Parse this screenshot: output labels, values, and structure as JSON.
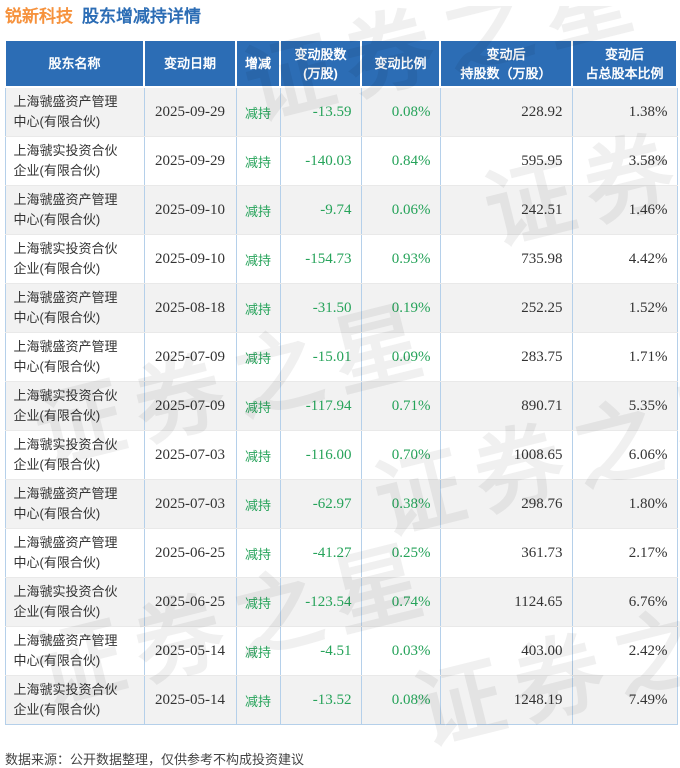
{
  "page_title": {
    "stock_name": "锐新科技",
    "report_title": "股东增减持详情"
  },
  "chart_data": {
    "type": "table",
    "title": "锐新科技 股东增减持详情",
    "columns": [
      {
        "key": "name",
        "label": "股东名称"
      },
      {
        "key": "date",
        "label": "变动日期"
      },
      {
        "key": "action",
        "label": "增减"
      },
      {
        "key": "change_shares",
        "label": "变动股数\n(万股)"
      },
      {
        "key": "change_ratio",
        "label": "变动比例"
      },
      {
        "key": "shares_after",
        "label": "变动后\n持股数（万股）"
      },
      {
        "key": "ratio_after",
        "label": "变动后\n占总股本比例"
      }
    ],
    "rows": [
      {
        "name": "上海虢盛资产管理中心(有限合伙)",
        "date": "2025-09-29",
        "action": "减持",
        "change_shares": "-13.59",
        "change_ratio": "0.08%",
        "shares_after": "228.92",
        "ratio_after": "1.38%"
      },
      {
        "name": "上海虢实投资合伙企业(有限合伙)",
        "date": "2025-09-29",
        "action": "减持",
        "change_shares": "-140.03",
        "change_ratio": "0.84%",
        "shares_after": "595.95",
        "ratio_after": "3.58%"
      },
      {
        "name": "上海虢盛资产管理中心(有限合伙)",
        "date": "2025-09-10",
        "action": "减持",
        "change_shares": "-9.74",
        "change_ratio": "0.06%",
        "shares_after": "242.51",
        "ratio_after": "1.46%"
      },
      {
        "name": "上海虢实投资合伙企业(有限合伙)",
        "date": "2025-09-10",
        "action": "减持",
        "change_shares": "-154.73",
        "change_ratio": "0.93%",
        "shares_after": "735.98",
        "ratio_after": "4.42%"
      },
      {
        "name": "上海虢盛资产管理中心(有限合伙)",
        "date": "2025-08-18",
        "action": "减持",
        "change_shares": "-31.50",
        "change_ratio": "0.19%",
        "shares_after": "252.25",
        "ratio_after": "1.52%"
      },
      {
        "name": "上海虢盛资产管理中心(有限合伙)",
        "date": "2025-07-09",
        "action": "减持",
        "change_shares": "-15.01",
        "change_ratio": "0.09%",
        "shares_after": "283.75",
        "ratio_after": "1.71%"
      },
      {
        "name": "上海虢实投资合伙企业(有限合伙)",
        "date": "2025-07-09",
        "action": "减持",
        "change_shares": "-117.94",
        "change_ratio": "0.71%",
        "shares_after": "890.71",
        "ratio_after": "5.35%"
      },
      {
        "name": "上海虢实投资合伙企业(有限合伙)",
        "date": "2025-07-03",
        "action": "减持",
        "change_shares": "-116.00",
        "change_ratio": "0.70%",
        "shares_after": "1008.65",
        "ratio_after": "6.06%"
      },
      {
        "name": "上海虢盛资产管理中心(有限合伙)",
        "date": "2025-07-03",
        "action": "减持",
        "change_shares": "-62.97",
        "change_ratio": "0.38%",
        "shares_after": "298.76",
        "ratio_after": "1.80%"
      },
      {
        "name": "上海虢盛资产管理中心(有限合伙)",
        "date": "2025-06-25",
        "action": "减持",
        "change_shares": "-41.27",
        "change_ratio": "0.25%",
        "shares_after": "361.73",
        "ratio_after": "2.17%"
      },
      {
        "name": "上海虢实投资合伙企业(有限合伙)",
        "date": "2025-06-25",
        "action": "减持",
        "change_shares": "-123.54",
        "change_ratio": "0.74%",
        "shares_after": "1124.65",
        "ratio_after": "6.76%"
      },
      {
        "name": "上海虢盛资产管理中心(有限合伙)",
        "date": "2025-05-14",
        "action": "减持",
        "change_shares": "-4.51",
        "change_ratio": "0.03%",
        "shares_after": "403.00",
        "ratio_after": "2.42%"
      },
      {
        "name": "上海虢实投资合伙企业(有限合伙)",
        "date": "2025-05-14",
        "action": "减持",
        "change_shares": "-13.52",
        "change_ratio": "0.08%",
        "shares_after": "1248.19",
        "ratio_after": "7.49%"
      }
    ]
  },
  "footer_note": "数据来源：公开数据整理，仅供参考不构成投资建议",
  "watermark_text": "证券之星",
  "colors": {
    "header_blue": "#2c6db5",
    "title_orange": "#f6923d",
    "change_green": "#26a35a",
    "row_alt_gray": "#f2f2f2",
    "grid_blue": "#b5d0ea"
  }
}
